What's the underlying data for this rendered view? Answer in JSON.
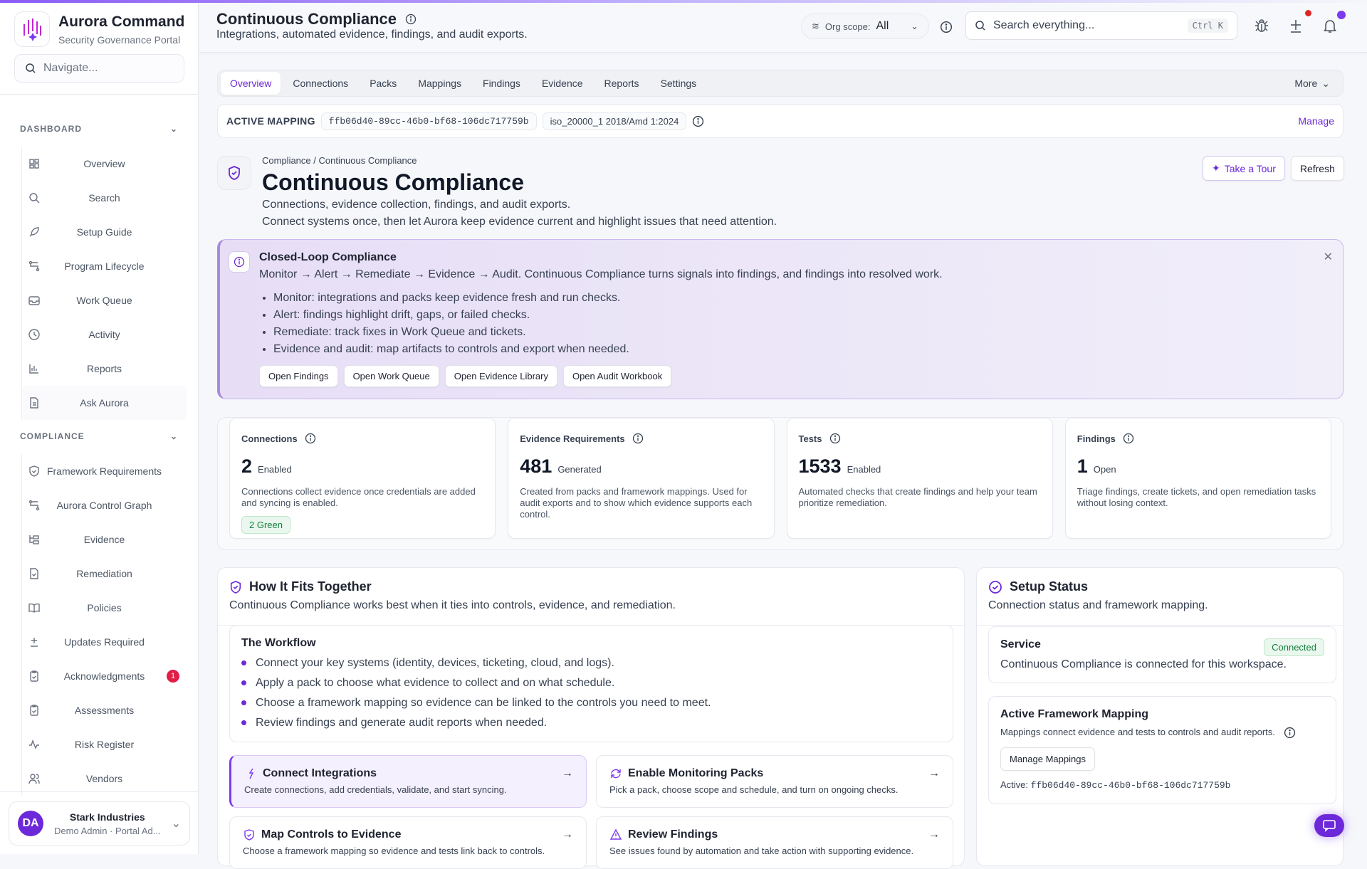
{
  "brand": {
    "name": "Aurora Command",
    "subtitle": "Security Governance Portal"
  },
  "sidebar": {
    "search_placeholder": "Navigate...",
    "sections": [
      {
        "label": "DASHBOARD",
        "items": [
          {
            "label": "Overview",
            "icon": "grid-icon"
          },
          {
            "label": "Search",
            "icon": "search-icon"
          },
          {
            "label": "Setup Guide",
            "icon": "rocket-icon"
          },
          {
            "label": "Program Lifecycle",
            "icon": "workflow-icon"
          },
          {
            "label": "Work Queue",
            "icon": "inbox-icon"
          },
          {
            "label": "Activity",
            "icon": "clock-icon"
          },
          {
            "label": "Reports",
            "icon": "bar-chart-icon"
          },
          {
            "label": "Ask Aurora",
            "icon": "document-icon"
          }
        ]
      },
      {
        "label": "COMPLIANCE",
        "items": [
          {
            "label": "Framework Requirements",
            "icon": "shield-check-icon"
          },
          {
            "label": "Aurora Control Graph",
            "icon": "workflow-icon"
          },
          {
            "label": "Evidence",
            "icon": "folder-tree-icon"
          },
          {
            "label": "Remediation",
            "icon": "file-check-icon"
          },
          {
            "label": "Policies",
            "icon": "book-icon"
          },
          {
            "label": "Updates Required",
            "icon": "plus-minus-icon"
          },
          {
            "label": "Acknowledgments",
            "icon": "clipboard-check-icon",
            "badge": "1"
          },
          {
            "label": "Assessments",
            "icon": "clipboard-check-icon"
          },
          {
            "label": "Risk Register",
            "icon": "activity-icon"
          },
          {
            "label": "Vendors",
            "icon": "users-icon"
          }
        ]
      }
    ],
    "user": {
      "initials": "DA",
      "org": "Stark Industries",
      "role": "Demo Admin · Portal Ad..."
    }
  },
  "header": {
    "title": "Continuous Compliance",
    "subtitle": "Integrations, automated evidence, findings, and audit exports.",
    "scope_label": "Org scope:",
    "scope_value": "All",
    "search_placeholder": "Search everything...",
    "shortcut": "Ctrl K"
  },
  "tabs": {
    "items": [
      "Overview",
      "Connections",
      "Packs",
      "Mappings",
      "Findings",
      "Evidence",
      "Reports",
      "Settings"
    ],
    "active": "Overview",
    "more": "More"
  },
  "mapping": {
    "label": "ACTIVE MAPPING",
    "id": "ffb06d40-89cc-46b0-bf68-106dc717759b",
    "framework": "iso_20000_1 2018/Amd 1:2024",
    "manage": "Manage"
  },
  "page": {
    "breadcrumb": "Compliance / Continuous Compliance",
    "title": "Continuous Compliance",
    "desc1": "Connections, evidence collection, findings, and audit exports.",
    "desc2": "Connect systems once, then let Aurora keep evidence current and highlight issues that need attention.",
    "tour": "Take a Tour",
    "refresh": "Refresh"
  },
  "callout": {
    "title": "Closed-Loop Compliance",
    "flow": "Monitor → Alert → Remediate → Evidence → Audit. Continuous Compliance turns signals into findings, and findings into resolved work.",
    "bullets": [
      "Monitor: integrations and packs keep evidence fresh and run checks.",
      "Alert: findings highlight drift, gaps, or failed checks.",
      "Remediate: track fixes in Work Queue and tickets.",
      "Evidence and audit: map artifacts to controls and export when needed."
    ],
    "actions": [
      "Open Findings",
      "Open Work Queue",
      "Open Evidence Library",
      "Open Audit Workbook"
    ]
  },
  "stats": [
    {
      "title": "Connections",
      "value": "2",
      "unit": "Enabled",
      "desc": "Connections collect evidence once credentials are added and syncing is enabled.",
      "badge": "2 Green"
    },
    {
      "title": "Evidence Requirements",
      "value": "481",
      "unit": "Generated",
      "desc": "Created from packs and framework mappings. Used for audit exports and to show which evidence supports each control."
    },
    {
      "title": "Tests",
      "value": "1533",
      "unit": "Enabled",
      "desc": "Automated checks that create findings and help your team prioritize remediation."
    },
    {
      "title": "Findings",
      "value": "1",
      "unit": "Open",
      "desc": "Triage findings, create tickets, and open remediation tasks without losing context."
    }
  ],
  "fits": {
    "title": "How It Fits Together",
    "subtitle": "Continuous Compliance works best when it ties into controls, evidence, and remediation.",
    "workflow_title": "The Workflow",
    "workflow": [
      "Connect your key systems (identity, devices, ticketing, cloud, and logs).",
      "Apply a pack to choose what evidence to collect and on what schedule.",
      "Choose a framework mapping so evidence can be linked to the controls you need to meet.",
      "Review findings and generate audit reports when needed."
    ],
    "cards": [
      {
        "title": "Connect Integrations",
        "desc": "Create connections, add credentials, validate, and start syncing.",
        "icon": "plug-icon"
      },
      {
        "title": "Enable Monitoring Packs",
        "desc": "Pick a pack, choose scope and schedule, and turn on ongoing checks.",
        "icon": "refresh-icon"
      },
      {
        "title": "Map Controls to Evidence",
        "desc": "Choose a framework mapping so evidence and tests link back to controls.",
        "icon": "shield-check-icon"
      },
      {
        "title": "Review Findings",
        "desc": "See issues found by automation and take action with supporting evidence.",
        "icon": "warning-icon"
      }
    ]
  },
  "setup": {
    "title": "Setup Status",
    "subtitle": "Connection status and framework mapping.",
    "service_title": "Service",
    "service_status": "Connected",
    "service_desc": "Continuous Compliance is connected for this workspace.",
    "mapping_title": "Active Framework Mapping",
    "mapping_desc": "Mappings connect evidence and tests to controls and audit reports.",
    "manage_btn": "Manage Mappings",
    "active_label": "Active:",
    "active_id": "ffb06d40-89cc-46b0-bf68-106dc717759b"
  },
  "colors": {
    "accent": "#6d28d9",
    "danger": "#e11d48",
    "success": "#15803d"
  }
}
